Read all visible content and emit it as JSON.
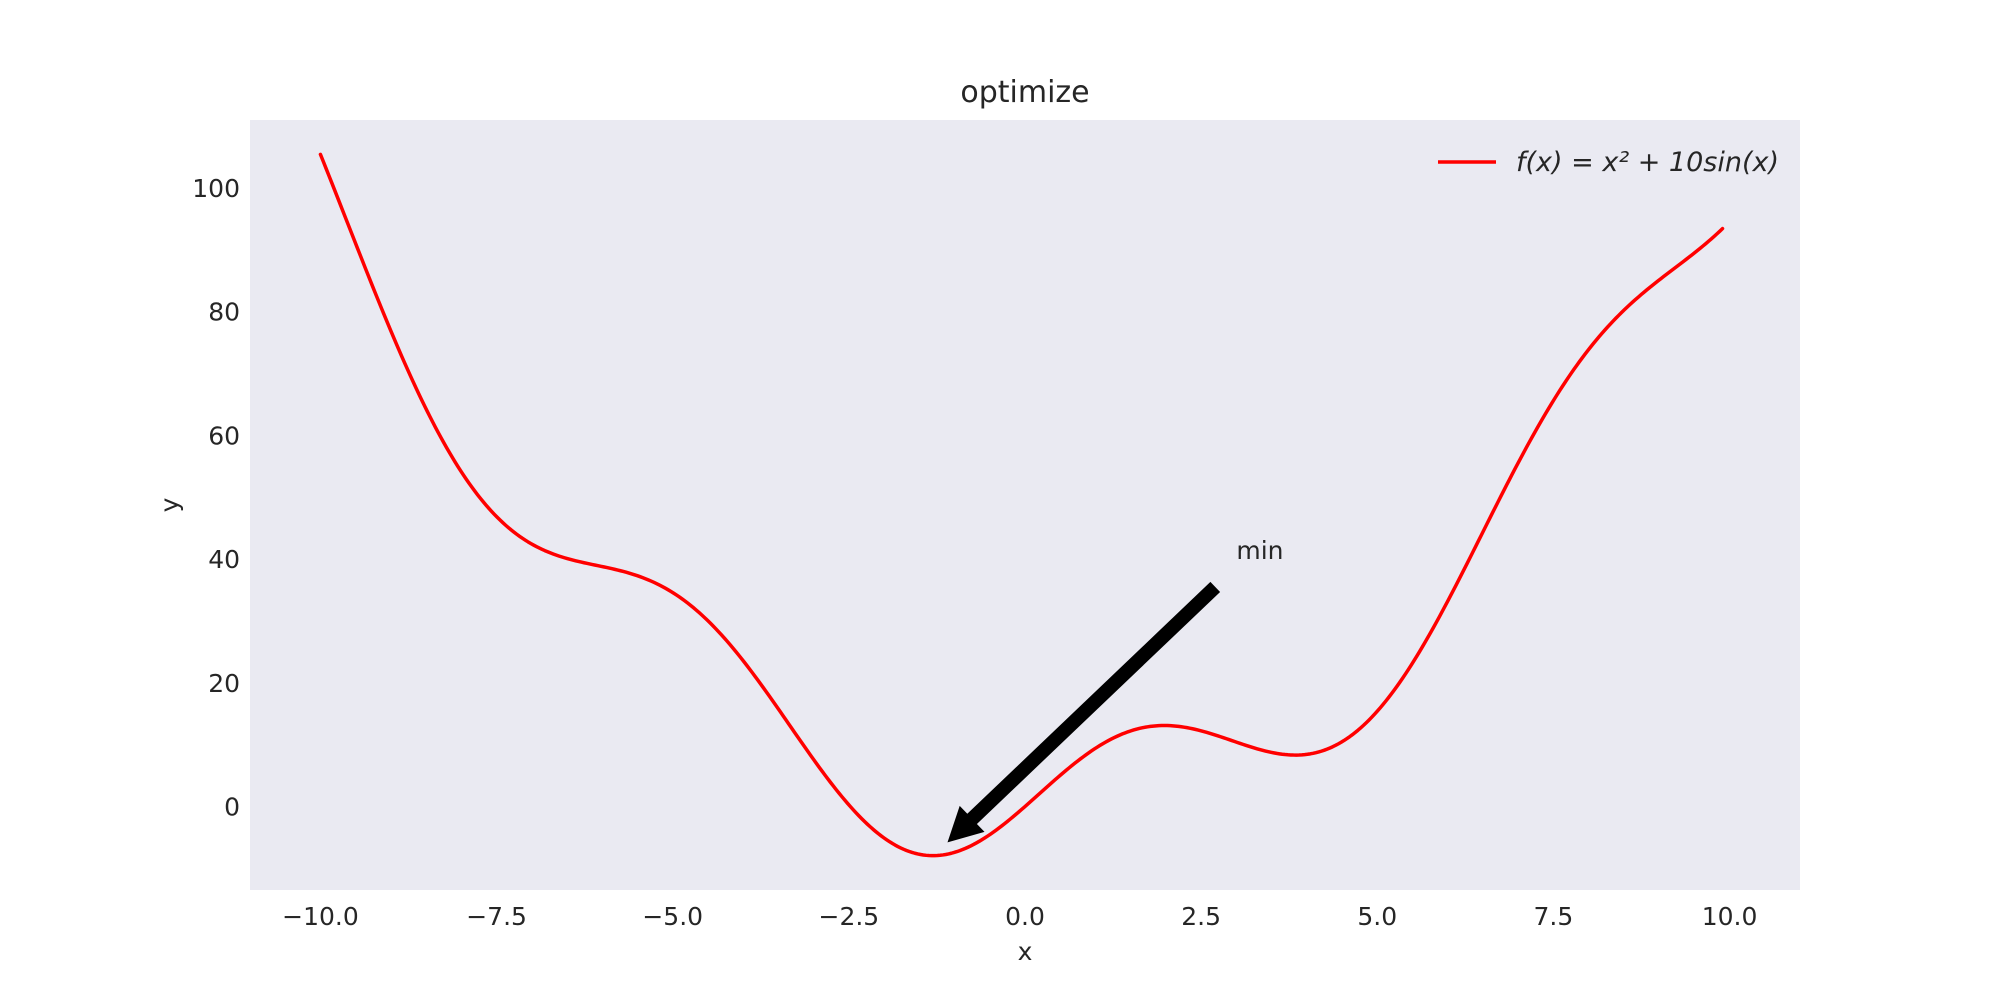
{
  "chart_data": {
    "type": "line",
    "title": "optimize",
    "xlabel": "x",
    "ylabel": "y",
    "xlim": [
      -11,
      11
    ],
    "ylim": [
      -13.5,
      111
    ],
    "xticks": [
      -10.0,
      -7.5,
      -5.0,
      -2.5,
      0.0,
      2.5,
      5.0,
      7.5,
      10.0
    ],
    "xtick_labels": [
      "−10.0",
      "−7.5",
      "−5.0",
      "−2.5",
      "0.0",
      "2.5",
      "5.0",
      "7.5",
      "10.0"
    ],
    "yticks": [
      0,
      20,
      40,
      60,
      80,
      100
    ],
    "ytick_labels": [
      "0",
      "20",
      "40",
      "60",
      "80",
      "100"
    ],
    "grid": false,
    "legend_position": "top-right",
    "series": [
      {
        "name": "f(x) = x² + 10sin(x)",
        "legend_label": "f(x) = x² + 10sin(x)",
        "function": "x^2 + 10*sin(x)",
        "x_range": [
          -10,
          9.9
        ],
        "color": "#ff0000"
      }
    ],
    "annotation": {
      "text": "min",
      "xy": [
        -1.1,
        -5.8
      ],
      "xytext": [
        3.0,
        40.0
      ],
      "arrow_start": [
        2.7,
        35.5
      ],
      "arrow_color": "#000000"
    },
    "colors": {
      "plot_background": "#eaeaf2",
      "figure_background": "#ffffff"
    }
  }
}
